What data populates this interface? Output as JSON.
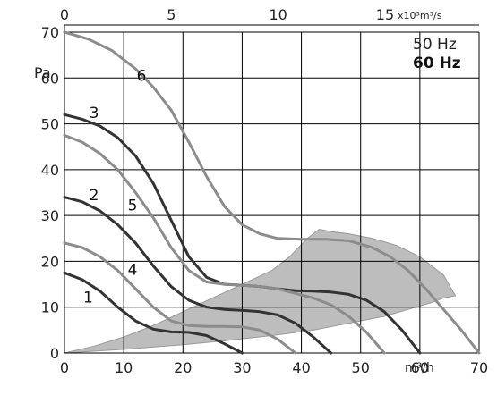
{
  "chart_data": {
    "type": "line",
    "xlabel": "m³/h",
    "xlabel_top": "x10³m³/s",
    "ylabel": "Pa",
    "xlim": [
      0,
      70
    ],
    "ylim": [
      0,
      70
    ],
    "x_ticks": [
      0,
      10,
      20,
      30,
      40,
      50,
      60,
      70
    ],
    "y_ticks": [
      0,
      10,
      20,
      30,
      40,
      50,
      60,
      70
    ],
    "x_top_ticks": [
      0,
      5,
      10,
      15
    ],
    "grid": true,
    "legend": [
      "50 Hz",
      "60 Hz"
    ],
    "legend_placement": "top-right",
    "colors": {
      "dark": "#333333",
      "light": "#8c8c8c",
      "region": "#bdbdbd",
      "grid": "#000000"
    },
    "series": [
      {
        "name": "1",
        "style": "dark",
        "x": [
          0,
          3,
          6,
          9,
          12,
          15,
          18,
          21,
          24,
          27,
          30
        ],
        "y": [
          17.5,
          16,
          13.5,
          10,
          7,
          5.2,
          4.6,
          4.5,
          3.8,
          2,
          0
        ]
      },
      {
        "name": "2",
        "style": "dark",
        "x": [
          0,
          3,
          6,
          9,
          12,
          15,
          18,
          21,
          24,
          27,
          30,
          33,
          36,
          39,
          42,
          45
        ],
        "y": [
          34,
          33,
          31,
          28,
          24,
          19,
          14.5,
          11.5,
          10,
          9.5,
          9.3,
          9,
          8.3,
          6.5,
          3.5,
          0
        ]
      },
      {
        "name": "3",
        "style": "dark",
        "x": [
          0,
          3,
          6,
          9,
          12,
          15,
          18,
          21,
          24,
          27,
          30,
          33,
          36,
          39,
          42,
          45,
          48,
          51,
          54,
          57,
          60
        ],
        "y": [
          52,
          51,
          49.5,
          47,
          43,
          37,
          29,
          21,
          16.5,
          15,
          14.8,
          14.5,
          14,
          13.6,
          13.5,
          13.3,
          12.8,
          11.5,
          9,
          5,
          0
        ]
      },
      {
        "name": "4",
        "style": "light",
        "x": [
          0,
          3,
          6,
          9,
          12,
          15,
          18,
          21,
          24,
          27,
          30,
          33,
          36,
          39
        ],
        "y": [
          24,
          23,
          21,
          18,
          14,
          10,
          7,
          6,
          5.8,
          5.8,
          5.7,
          5,
          3,
          0
        ]
      },
      {
        "name": "5",
        "style": "light",
        "x": [
          0,
          3,
          6,
          9,
          12,
          15,
          18,
          21,
          24,
          27,
          30,
          33,
          36,
          39,
          42,
          45,
          48,
          51,
          54
        ],
        "y": [
          47.5,
          46,
          43.5,
          40,
          35,
          29.5,
          23,
          18,
          15.5,
          15,
          14.8,
          14.5,
          14,
          13,
          12,
          10.5,
          8,
          4.5,
          0
        ]
      },
      {
        "name": "6",
        "style": "light",
        "x": [
          0,
          4,
          8,
          12,
          15,
          18,
          21,
          24,
          27,
          30,
          33,
          36,
          40,
          44,
          48,
          52,
          55,
          58,
          61,
          64,
          67,
          70
        ],
        "y": [
          70,
          68.5,
          66,
          62,
          58,
          53,
          46,
          38.5,
          32,
          28,
          26,
          25,
          24.8,
          24.8,
          24.5,
          23,
          21,
          18,
          14,
          9.5,
          5,
          0
        ]
      }
    ],
    "curve_labels": [
      {
        "text": "1",
        "x": 4,
        "y": 12.2
      },
      {
        "text": "2",
        "x": 5,
        "y": 34.5
      },
      {
        "text": "3",
        "x": 5,
        "y": 52.5
      },
      {
        "text": "4",
        "x": 11.5,
        "y": 18.2
      },
      {
        "text": "5",
        "x": 11.5,
        "y": 32.3
      },
      {
        "text": "6",
        "x": 13,
        "y": 60.5
      }
    ],
    "operating_region": {
      "x": [
        0,
        10,
        20,
        28,
        35,
        42,
        48,
        54,
        58,
        62,
        64,
        66,
        64,
        60,
        56,
        52,
        48,
        45,
        43,
        41,
        38,
        35,
        30,
        25,
        20,
        15,
        10,
        5,
        0
      ],
      "y": [
        0,
        0.8,
        1.8,
        2.8,
        3.8,
        5,
        6.5,
        8,
        9.5,
        11,
        12,
        12.5,
        17,
        21,
        23.5,
        25,
        26,
        26.5,
        27,
        25,
        21,
        18,
        15,
        12,
        9,
        6,
        3.5,
        1.5,
        0
      ]
    }
  }
}
